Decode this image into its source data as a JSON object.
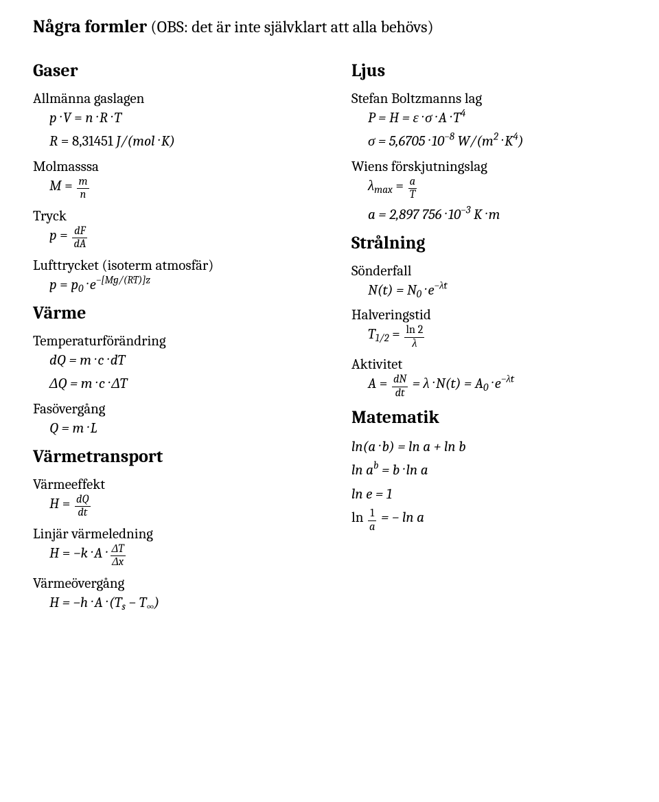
{
  "title_bold": "Några formler",
  "title_rest": " (OBS: det är inte självklart att alla behövs)",
  "left": {
    "gaser": {
      "heading": "Gaser",
      "allman_label": "Allmänna gaslagen",
      "allman_f1_lhs": "p · V",
      "allman_f1_rhs": "n · R · T",
      "allman_f2_lhs": "R",
      "allman_f2_rhs_num": "8,31451",
      "allman_f2_rhs_unit": " J/(mol · K)",
      "molmassa_label": "Molmasssa",
      "mol_lhs": "M",
      "mol_num": "m",
      "mol_den": "n",
      "tryck_label": "Tryck",
      "tryck_lhs": "p",
      "tryck_num": "dF",
      "tryck_den": "dA",
      "luft_label": "Lufttrycket (isoterm atmosfär)",
      "luft_lhs": "p",
      "luft_p0": "p",
      "luft_p0_sub": "0",
      "luft_e": " · e",
      "luft_exp": "−[M·g/(R·T)]·z"
    },
    "varme": {
      "heading": "Värme",
      "temp_label": "Temperaturförändring",
      "temp_f1": "dQ = m · c · dT",
      "temp_f2": "ΔQ = m · c · ΔT",
      "fas_label": "Fasövergång",
      "fas_f": "Q = m · L"
    },
    "transport": {
      "heading": "Värmetransport",
      "effekt_label": "Värmeeffekt",
      "eff_lhs": "H",
      "eff_num": "dQ",
      "eff_den": "dt",
      "ledning_label": "Linjär värmeledning",
      "led_lhs": "H",
      "led_mid": "−k · A ·",
      "led_num": "ΔT",
      "led_den": "Δx",
      "overgang_label": "Värmeövergång",
      "over_f_pre": "H = −h · A · (T",
      "over_sub_s": "s",
      "over_mid": " − T",
      "over_sub_inf": "∞",
      "over_end": ")"
    }
  },
  "right": {
    "ljus": {
      "heading": "Ljus",
      "stefan_label": "Stefan Boltzmanns lag",
      "stefan_f1_pre": "P = H = ε · σ · A · T",
      "stefan_f1_sup": "4",
      "stefan_f2_pre": "σ = 5,6705 · 10",
      "stefan_f2_sup": "−8",
      "stefan_f2_unit_pre": "  W/(m",
      "stefan_f2_m_sup": "2",
      "stefan_f2_mid": " · K",
      "stefan_f2_k_sup": "4",
      "stefan_f2_end": ")",
      "wien_label": "Wiens förskjutningslag",
      "wien_lhs": "λ",
      "wien_sub": "max",
      "wien_num": "a",
      "wien_den": "T",
      "wien_a_pre": "a = 2,897 756 · 10",
      "wien_a_sup": "−3",
      "wien_a_unit": "  K · m"
    },
    "stralning": {
      "heading": "Strålning",
      "sonder_label": "Sönderfall",
      "sonder_pre": "N(t) = N",
      "sonder_sub": "0",
      "sonder_e": " · e",
      "sonder_exp": "−λ·t",
      "halv_label": "Halveringstid",
      "halv_lhs": "T",
      "halv_sub": "1/2",
      "halv_num": "ln 2",
      "halv_den": "λ",
      "akt_label": "Aktivitet",
      "akt_lhs": "A",
      "akt_num": "dN",
      "akt_den": "dt",
      "akt_mid1": " = λ · N(t) = A",
      "akt_sub0": "0",
      "akt_e": " · e",
      "akt_exp": "−λ·t"
    },
    "matematik": {
      "heading": "Matematik",
      "m1": "ln(a · b) = ln a + ln b",
      "m2_pre": "ln a",
      "m2_sup": "b",
      "m2_rest": " = b · ln a",
      "m3": "ln e = 1",
      "m4_pre": "ln",
      "m4_num": "1",
      "m4_den": "a",
      "m4_rest": " = − ln a"
    }
  }
}
